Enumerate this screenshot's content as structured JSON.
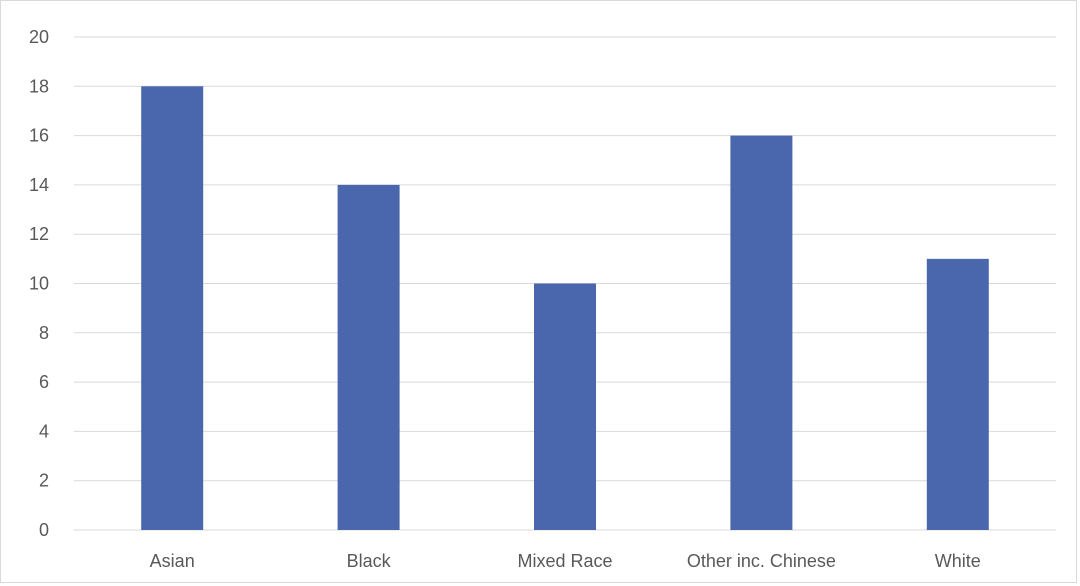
{
  "chart_data": {
    "type": "bar",
    "title": "",
    "xlabel": "",
    "ylabel": "",
    "categories": [
      "Asian",
      "Black",
      "Mixed Race",
      "Other inc. Chinese",
      "White"
    ],
    "values": [
      18,
      14,
      10,
      16,
      11
    ],
    "ylim": [
      0,
      20
    ],
    "yticks": [
      0,
      2,
      4,
      6,
      8,
      10,
      12,
      14,
      16,
      18,
      20
    ],
    "grid": true,
    "legend": "none",
    "bar_color": "#4a67ae",
    "grid_color": "#d9d9d9"
  }
}
